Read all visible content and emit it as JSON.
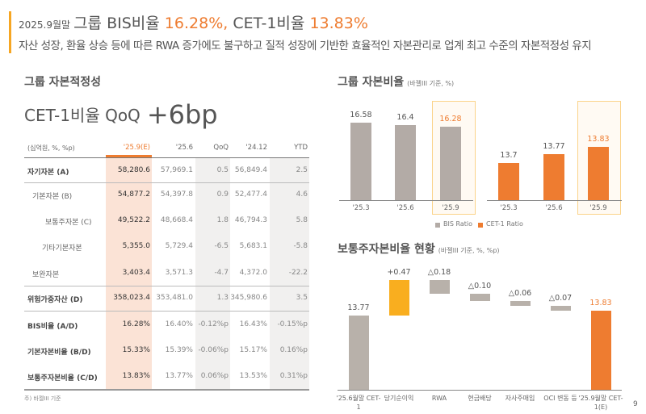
{
  "header": {
    "period": "2025.9월말",
    "title_prefix": "그룹 BIS비율",
    "bis": "16.28%,",
    "title_mid": "CET-1비율",
    "cet1": "13.83%",
    "subtitle": "자산 성장, 환율 상승 등에 따른 RWA 증가에도 불구하고 질적 성장에 기반한 효율적인 자본관리로 업계 최고 수준의 자본적정성 유지"
  },
  "left": {
    "section_title": "그룹 자본적정성",
    "qoq_label": "CET-1비율 QoQ",
    "qoq_value": "+6bp",
    "table": {
      "columns": [
        "(십억원, %, %p)",
        "'25.9(E)",
        "'25.6",
        "QoQ",
        "'24.12",
        "YTD"
      ],
      "rows": [
        {
          "label": "자기자본 (A)",
          "bold": true,
          "values": [
            "58,280.6",
            "57,969.1",
            "0.5",
            "56,849.4",
            "2.5"
          ]
        },
        {
          "label": "기본자본 (B)",
          "values": [
            "54,877.2",
            "54,397.8",
            "0.9",
            "52,477.4",
            "4.6"
          ]
        },
        {
          "label": "보통주자본 (C)",
          "values": [
            "49,522.2",
            "48,668.4",
            "1.8",
            "46,794.3",
            "5.8"
          ]
        },
        {
          "label": "기타기본자본",
          "values": [
            "5,355.0",
            "5,729.4",
            "-6.5",
            "5,683.1",
            "-5.8"
          ]
        },
        {
          "label": "보완자본",
          "values": [
            "3,403.4",
            "3,571.3",
            "-4.7",
            "4,372.0",
            "-22.2"
          ]
        },
        {
          "label": "위험가중자산 (D)",
          "bold": true,
          "values": [
            "358,023.4",
            "353,481.0",
            "1.3",
            "345,980.6",
            "3.5"
          ]
        },
        {
          "label": "BIS비율 (A/D)",
          "bold": true,
          "values": [
            "16.28%",
            "16.40%",
            "-0.12%p",
            "16.43%",
            "-0.15%p"
          ]
        },
        {
          "label": "기본자본비율 (B/D)",
          "bold": true,
          "values": [
            "15.33%",
            "15.39%",
            "-0.06%p",
            "15.17%",
            "0.16%p"
          ]
        },
        {
          "label": "보통주자본비율 (C/D)",
          "bold": true,
          "values": [
            "13.83%",
            "13.77%",
            "0.06%p",
            "13.53%",
            "0.31%p"
          ]
        }
      ]
    },
    "footnote": "주) 바젤III 기준"
  },
  "chart_data": [
    {
      "type": "bar",
      "title": "그룹 자본비율",
      "subtitle": "(바젤III 기준, %)",
      "legend_position": "bottom",
      "series": [
        {
          "name": "BIS Ratio",
          "color": "#b3aba6",
          "categories": [
            "'25.3",
            "'25.6",
            "'25.9"
          ],
          "values": [
            16.58,
            16.4,
            16.28
          ]
        },
        {
          "name": "CET-1 Ratio",
          "color": "#ee7c30",
          "categories": [
            "'25.3",
            "'25.6",
            "'25.9"
          ],
          "values": [
            13.7,
            13.77,
            13.83
          ]
        }
      ],
      "highlight": "'25.9",
      "highlight_color": "#ee7c30"
    },
    {
      "type": "waterfall",
      "title": "보통주자본비율 현황",
      "subtitle": "(바젤III 기준, %, %p)",
      "categories": [
        "'25.6월말 CET-1",
        "당기순이익",
        "RWA",
        "현금배당",
        "자사주매입",
        "OCI 변동 등",
        "'25.9월말 CET-1(E)"
      ],
      "labels": [
        "13.77",
        "+0.47",
        "△0.18",
        "△0.10",
        "△0.06",
        "△0.07",
        "13.83"
      ],
      "values": [
        13.77,
        0.47,
        -0.18,
        -0.1,
        -0.06,
        -0.07,
        13.83
      ],
      "colors": [
        "#b8b1aa",
        "#f9ae1f",
        "#b8b1aa",
        "#b8b1aa",
        "#b8b1aa",
        "#b8b1aa",
        "#ee7c30"
      ]
    }
  ],
  "page_number": "9"
}
